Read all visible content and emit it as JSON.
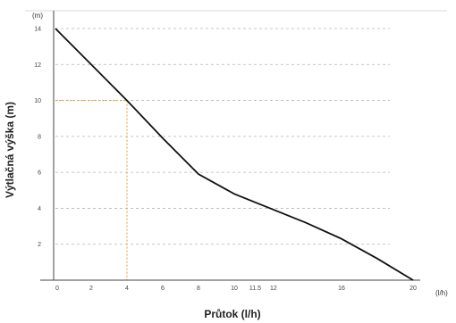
{
  "chart_data": {
    "type": "line",
    "xlabel": "Průtok (l/h)",
    "ylabel": "Výtlačná výška (m)",
    "x_unit": "(l/h)",
    "y_unit": "(m)",
    "xlim": [
      0,
      20
    ],
    "ylim": [
      0,
      14
    ],
    "x_ticks": [
      "0",
      "2",
      "4",
      "6",
      "8",
      "10",
      "11.5",
      "12",
      "16",
      "20"
    ],
    "x_tick_values": [
      0,
      2,
      4,
      6,
      8,
      10,
      11.5,
      12,
      16,
      20
    ],
    "y_ticks": [
      "2",
      "4",
      "6",
      "8",
      "10",
      "12",
      "14"
    ],
    "y_tick_values": [
      2,
      4,
      6,
      8,
      10,
      12,
      14
    ],
    "grid": "horizontal dashed",
    "series": [
      {
        "x": [
          0,
          2,
          4,
          6,
          8,
          10,
          12,
          14,
          16,
          18,
          20
        ],
        "y": [
          14,
          12,
          10,
          7.9,
          5.9,
          4.8,
          4.0,
          3.2,
          2.3,
          1.2,
          0
        ]
      }
    ],
    "reference_point": {
      "x": 4,
      "y": 10
    },
    "colors": {
      "line": "#111111",
      "grid": "#b5b5b5",
      "reference": "#e0a030",
      "axis": "#444444"
    }
  }
}
